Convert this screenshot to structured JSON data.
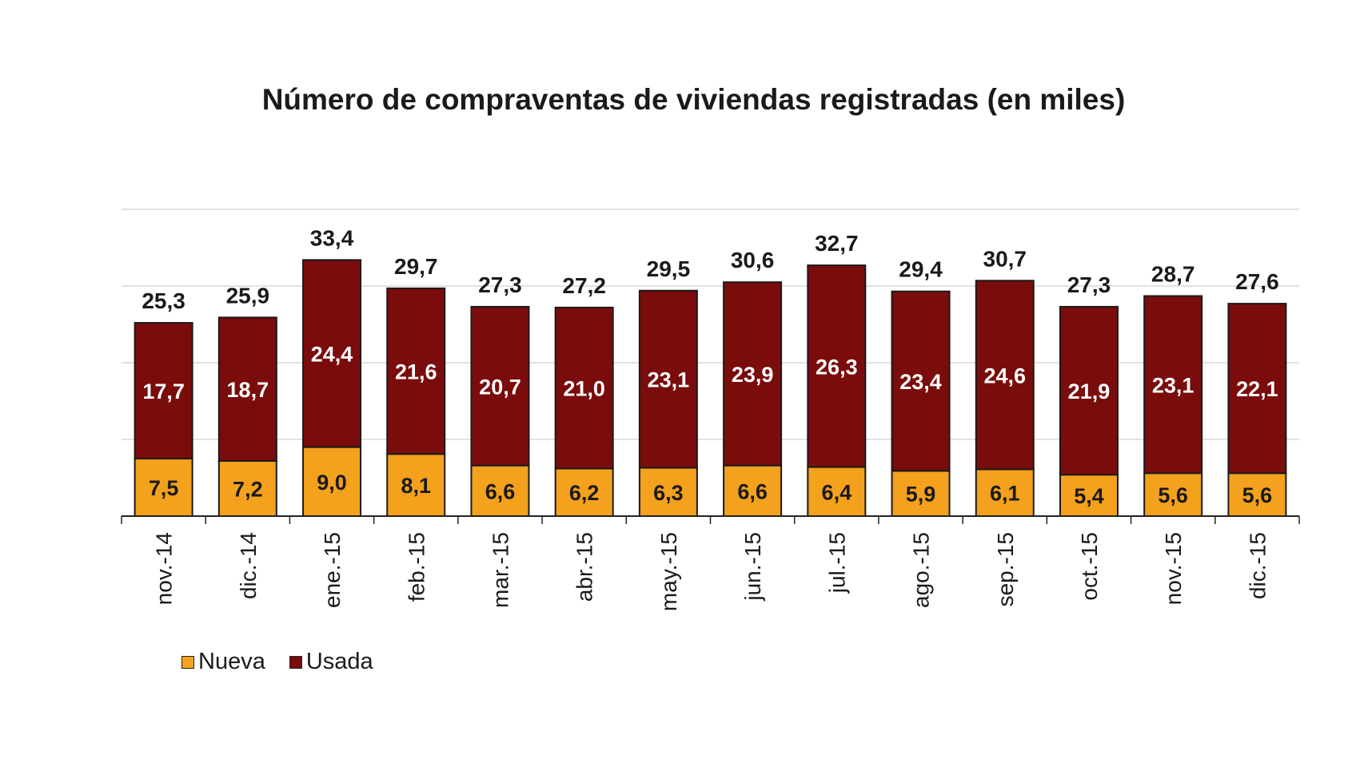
{
  "chart_data": {
    "type": "bar",
    "stacked": true,
    "title": "Número de compraventas de viviendas registradas (en miles)",
    "categories": [
      "nov.-14",
      "dic.-14",
      "ene.-15",
      "feb.-15",
      "mar.-15",
      "abr.-15",
      "may.-15",
      "jun.-15",
      "jul.-15",
      "ago.-15",
      "sep.-15",
      "oct.-15",
      "nov.-15",
      "dic.-15"
    ],
    "series": [
      {
        "name": "Nueva",
        "color": "#f4a11d",
        "values": [
          7.5,
          7.2,
          9.0,
          8.1,
          6.6,
          6.2,
          6.3,
          6.6,
          6.4,
          5.9,
          6.1,
          5.4,
          5.6,
          5.6
        ],
        "labels": [
          "7,5",
          "7,2",
          "9,0",
          "8,1",
          "6,6",
          "6,2",
          "6,3",
          "6,6",
          "6,4",
          "5,9",
          "6,1",
          "5,4",
          "5,6",
          "5,6"
        ]
      },
      {
        "name": "Usada",
        "color": "#7a0c0c",
        "values": [
          17.7,
          18.7,
          24.4,
          21.6,
          20.7,
          21.0,
          23.1,
          23.9,
          26.3,
          23.4,
          24.6,
          21.9,
          23.1,
          22.1
        ],
        "labels": [
          "17,7",
          "18,7",
          "24,4",
          "21,6",
          "20,7",
          "21,0",
          "23,1",
          "23,9",
          "26,3",
          "23,4",
          "24,6",
          "21,9",
          "23,1",
          "22,1"
        ]
      }
    ],
    "totals": [
      25.3,
      25.9,
      33.4,
      29.7,
      27.3,
      27.2,
      29.5,
      30.6,
      32.7,
      29.4,
      30.7,
      27.3,
      28.7,
      27.6
    ],
    "total_labels": [
      "25,3",
      "25,9",
      "33,4",
      "29,7",
      "27,3",
      "27,2",
      "29,5",
      "30,6",
      "32,7",
      "29,4",
      "30,7",
      "27,3",
      "28,7",
      "27,6"
    ],
    "ylim": [
      0,
      40
    ],
    "gridlines": [
      10,
      20,
      30,
      40
    ],
    "legend_position": "bottom-left",
    "xlabel": "",
    "ylabel": ""
  }
}
